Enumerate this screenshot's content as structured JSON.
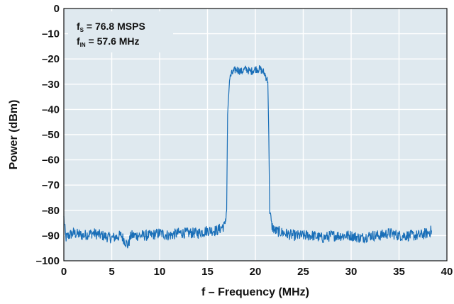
{
  "chart_data": {
    "type": "line",
    "xlabel": "f – Frequency (MHz)",
    "ylabel": "Power (dBm)",
    "xlim": [
      0,
      40
    ],
    "ylim": [
      -100,
      0
    ],
    "x_ticks": [
      0,
      5,
      10,
      15,
      20,
      25,
      30,
      35,
      40
    ],
    "y_ticks": [
      0,
      -10,
      -20,
      -30,
      -40,
      -50,
      -60,
      -70,
      -80,
      -90,
      -100
    ],
    "x_tick_labels": [
      "0",
      "5",
      "10",
      "15",
      "20",
      "25",
      "30",
      "35",
      "40"
    ],
    "y_tick_labels": [
      "0",
      "–10",
      "–20",
      "–30",
      "–40",
      "–50",
      "–60",
      "–70",
      "–80",
      "–90",
      "–100"
    ],
    "grid": true,
    "annotations": [
      {
        "main": "f",
        "sub": "S",
        "rest": " = 76.8 MSPS"
      },
      {
        "main": "f",
        "sub": "IN",
        "rest": " = 57.6 MHz"
      }
    ],
    "colors": {
      "trace": "#1a6fb8",
      "plot_bg": "#dfe9ef",
      "grid": "#ffffff"
    },
    "series": [
      {
        "x": [
          0,
          0.2,
          0.5,
          1,
          2,
          3,
          4,
          5,
          6,
          6.7,
          7,
          8,
          9,
          10,
          11,
          12,
          13,
          14,
          15,
          16,
          16.8,
          17.0,
          17.1,
          17.3,
          17.5,
          18,
          18.5,
          19,
          19.5,
          20,
          20.5,
          21,
          21.3,
          21.4,
          21.5,
          21.7,
          22,
          23,
          24,
          25,
          26,
          27,
          28,
          29,
          30,
          31,
          32,
          33,
          34,
          35,
          36,
          37,
          38,
          38.4
        ],
        "y": [
          -83,
          -91,
          -90,
          -89,
          -90,
          -89,
          -90,
          -91,
          -90,
          -94,
          -90,
          -90,
          -90,
          -89,
          -90,
          -89,
          -89,
          -89,
          -88,
          -88,
          -86,
          -80,
          -42,
          -28,
          -26,
          -24,
          -25,
          -24,
          -25,
          -24,
          -24,
          -26,
          -29,
          -50,
          -80,
          -86,
          -88,
          -89,
          -90,
          -90,
          -90,
          -91,
          -90,
          -90,
          -90,
          -91,
          -90,
          -90,
          -89,
          -90,
          -90,
          -90,
          -89,
          -88
        ]
      }
    ]
  }
}
